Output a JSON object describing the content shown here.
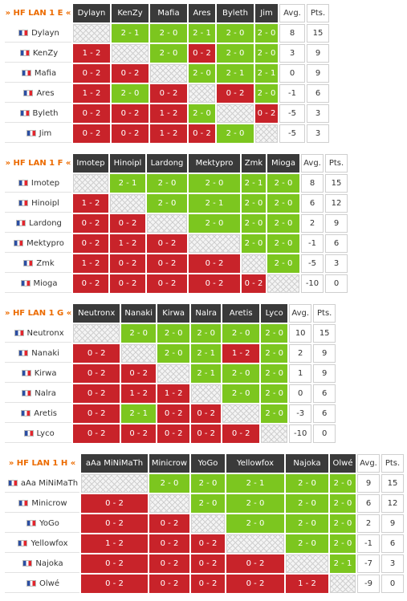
{
  "groups": [
    {
      "title": "» HF LAN 1 E «",
      "players": [
        "Dylayn",
        "KenZy",
        "Mafia",
        "Ares",
        "Byleth",
        "Jim"
      ],
      "stat_headers": [
        "Avg.",
        "Pts."
      ],
      "rows": [
        {
          "name": "Dylayn",
          "cells": [
            "",
            "2 - 1",
            "2 - 0",
            "2 - 1",
            "2 - 0",
            "2 - 0"
          ],
          "avg": "8",
          "pts": "15"
        },
        {
          "name": "KenZy",
          "cells": [
            "1 - 2",
            "",
            "2 - 0",
            "0 - 2",
            "2 - 0",
            "2 - 0"
          ],
          "avg": "3",
          "pts": "9"
        },
        {
          "name": "Mafia",
          "cells": [
            "0 - 2",
            "0 - 2",
            "",
            "2 - 0",
            "2 - 1",
            "2 - 1"
          ],
          "avg": "0",
          "pts": "9"
        },
        {
          "name": "Ares",
          "cells": [
            "1 - 2",
            "2 - 0",
            "0 - 2",
            "",
            "0 - 2",
            "2 - 0"
          ],
          "avg": "-1",
          "pts": "6"
        },
        {
          "name": "Byleth",
          "cells": [
            "0 - 2",
            "0 - 2",
            "1 - 2",
            "2 - 0",
            "",
            "0 - 2"
          ],
          "avg": "-5",
          "pts": "3"
        },
        {
          "name": "Jim",
          "cells": [
            "0 - 2",
            "0 - 2",
            "1 - 2",
            "0 - 2",
            "2 - 0",
            ""
          ],
          "avg": "-5",
          "pts": "3"
        }
      ]
    },
    {
      "title": "» HF LAN 1 F «",
      "players": [
        "Imotep",
        "Hinoipl",
        "Lardong",
        "Mektypro",
        "Zmk",
        "Mioga"
      ],
      "stat_headers": [
        "Avg.",
        "Pts."
      ],
      "rows": [
        {
          "name": "Imotep",
          "cells": [
            "",
            "2 - 1",
            "2 - 0",
            "2 - 0",
            "2 - 1",
            "2 - 0"
          ],
          "avg": "8",
          "pts": "15"
        },
        {
          "name": "Hinoipl",
          "cells": [
            "1 - 2",
            "",
            "2 - 0",
            "2 - 1",
            "2 - 0",
            "2 - 0"
          ],
          "avg": "6",
          "pts": "12"
        },
        {
          "name": "Lardong",
          "cells": [
            "0 - 2",
            "0 - 2",
            "",
            "2 - 0",
            "2 - 0",
            "2 - 0"
          ],
          "avg": "2",
          "pts": "9"
        },
        {
          "name": "Mektypro",
          "cells": [
            "0 - 2",
            "1 - 2",
            "0 - 2",
            "",
            "2 - 0",
            "2 - 0"
          ],
          "avg": "-1",
          "pts": "6"
        },
        {
          "name": "Zmk",
          "cells": [
            "1 - 2",
            "0 - 2",
            "0 - 2",
            "0 - 2",
            "",
            "2 - 0"
          ],
          "avg": "-5",
          "pts": "3"
        },
        {
          "name": "Mioga",
          "cells": [
            "0 - 2",
            "0 - 2",
            "0 - 2",
            "0 - 2",
            "0 - 2",
            ""
          ],
          "avg": "-10",
          "pts": "0"
        }
      ]
    },
    {
      "title": "» HF LAN 1 G «",
      "players": [
        "Neutronx",
        "Nanaki",
        "Kirwa",
        "Nalra",
        "Aretis",
        "Lyco"
      ],
      "stat_headers": [
        "Avg.",
        "Pts."
      ],
      "rows": [
        {
          "name": "Neutronx",
          "cells": [
            "",
            "2 - 0",
            "2 - 0",
            "2 - 0",
            "2 - 0",
            "2 - 0"
          ],
          "avg": "10",
          "pts": "15"
        },
        {
          "name": "Nanaki",
          "cells": [
            "0 - 2",
            "",
            "2 - 0",
            "2 - 1",
            "1 - 2",
            "2 - 0"
          ],
          "avg": "2",
          "pts": "9"
        },
        {
          "name": "Kirwa",
          "cells": [
            "0 - 2",
            "0 - 2",
            "",
            "2 - 1",
            "2 - 0",
            "2 - 0"
          ],
          "avg": "1",
          "pts": "9"
        },
        {
          "name": "Nalra",
          "cells": [
            "0 - 2",
            "1 - 2",
            "1 - 2",
            "",
            "2 - 0",
            "2 - 0"
          ],
          "avg": "0",
          "pts": "6"
        },
        {
          "name": "Aretis",
          "cells": [
            "0 - 2",
            "2 - 1",
            "0 - 2",
            "0 - 2",
            "",
            "2 - 0"
          ],
          "avg": "-3",
          "pts": "6"
        },
        {
          "name": "Lyco",
          "cells": [
            "0 - 2",
            "0 - 2",
            "0 - 2",
            "0 - 2",
            "0 - 2",
            ""
          ],
          "avg": "-10",
          "pts": "0"
        }
      ]
    },
    {
      "title": "» HF LAN 1 H «",
      "players": [
        "aAa MiNiMaTh",
        "Minicrow",
        "YoGo",
        "Yellowfox",
        "Najoka",
        "Olwé"
      ],
      "stat_headers": [
        "Avg.",
        "Pts."
      ],
      "rows": [
        {
          "name": "aAa MiNiMaTh",
          "cells": [
            "",
            "2 - 0",
            "2 - 0",
            "2 - 1",
            "2 - 0",
            "2 - 0"
          ],
          "avg": "9",
          "pts": "15"
        },
        {
          "name": "Minicrow",
          "cells": [
            "0 - 2",
            "",
            "2 - 0",
            "2 - 0",
            "2 - 0",
            "2 - 0"
          ],
          "avg": "6",
          "pts": "12"
        },
        {
          "name": "YoGo",
          "cells": [
            "0 - 2",
            "0 - 2",
            "",
            "2 - 0",
            "2 - 0",
            "2 - 0"
          ],
          "avg": "2",
          "pts": "9"
        },
        {
          "name": "Yellowfox",
          "cells": [
            "1 - 2",
            "0 - 2",
            "0 - 2",
            "",
            "2 - 0",
            "2 - 0"
          ],
          "avg": "-1",
          "pts": "6"
        },
        {
          "name": "Najoka",
          "cells": [
            "0 - 2",
            "0 - 2",
            "0 - 2",
            "0 - 2",
            "",
            "2 - 1"
          ],
          "avg": "-7",
          "pts": "3"
        },
        {
          "name": "Olwé",
          "cells": [
            "0 - 2",
            "0 - 2",
            "0 - 2",
            "0 - 2",
            "1 - 2",
            ""
          ],
          "avg": "-9",
          "pts": "0"
        }
      ]
    }
  ]
}
